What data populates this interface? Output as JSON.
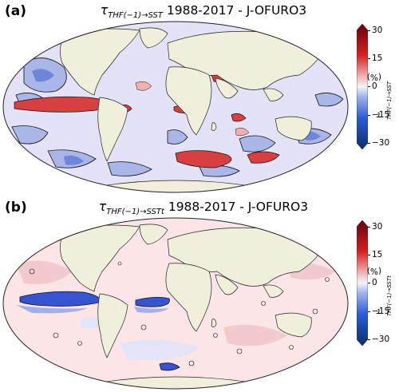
{
  "colorbar": {
    "ticks": [
      "30",
      "15",
      "0",
      "−15",
      "−30"
    ],
    "unit": "(%)",
    "range": [
      -30,
      30
    ],
    "colors": [
      "#08306b",
      "#2a5bd6",
      "#9fb4ee",
      "#f4f4f8",
      "#f2b5b5",
      "#d62020",
      "#67000d"
    ]
  },
  "colors": {
    "land": "#efefdb",
    "ocean_base_a": "#e4e2f6",
    "ocean_base_b": "#fbe5e7",
    "contour": "#111111"
  },
  "panels": [
    {
      "letter": "(a)",
      "title_symbol": "τ",
      "title_subscript": "THF(−1)→SST",
      "title_text": " 1988-2017 - J-OFURO3",
      "cbar_subscript": "THF(−1)→SST"
    },
    {
      "letter": "(b)",
      "title_symbol": "τ",
      "title_subscript": "THF(−1)→SSTt",
      "title_text": " 1988-2017 - J-OFURO3",
      "cbar_subscript": "THF(−1)→SSTt"
    }
  ]
}
